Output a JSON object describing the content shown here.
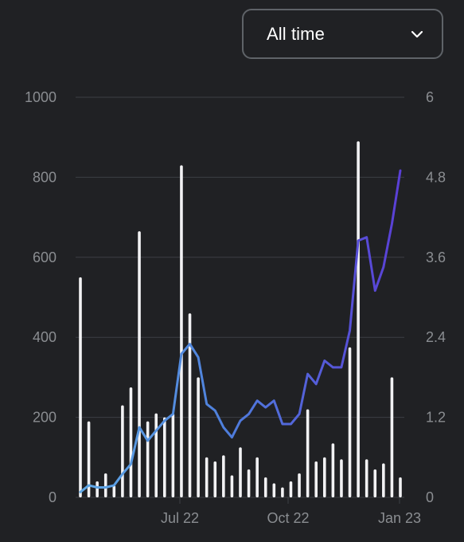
{
  "range_select": {
    "value": "All time",
    "icon": "chevron-down-icon"
  },
  "colors": {
    "background": "#202124",
    "bars": "#f2f2f4",
    "line_start": "#5fa8e6",
    "line_end": "#5a3fd6",
    "grid": "#3c3f44",
    "tick_text": "#8a8d91"
  },
  "chart_data": {
    "type": "bar+line",
    "title": "",
    "xlabel": "",
    "ylabel_left": "",
    "ylabel_right": "",
    "grid": true,
    "legend": "none",
    "x_ticks": [
      "Jul 22",
      "Oct 22",
      "Jan 23"
    ],
    "y_left": {
      "ticks": [
        "1000",
        "800",
        "600",
        "400",
        "200",
        "0"
      ],
      "range": [
        0,
        1000
      ]
    },
    "y_right": {
      "ticks": [
        "6",
        "4.8",
        "3.6",
        "2.4",
        "1.2",
        "0"
      ],
      "range": [
        0,
        6
      ]
    },
    "bars": [
      550,
      190,
      40,
      60,
      30,
      230,
      275,
      665,
      190,
      210,
      200,
      210,
      830,
      460,
      300,
      100,
      90,
      105,
      55,
      125,
      70,
      100,
      50,
      35,
      25,
      40,
      60,
      220,
      90,
      100,
      135,
      95,
      375,
      890,
      95,
      70,
      85,
      300,
      50
    ],
    "line": [
      0.08,
      0.18,
      0.15,
      0.15,
      0.18,
      0.35,
      0.5,
      1.05,
      0.85,
      1.0,
      1.15,
      1.25,
      2.15,
      2.3,
      2.1,
      1.4,
      1.3,
      1.05,
      0.9,
      1.15,
      1.25,
      1.45,
      1.35,
      1.45,
      1.1,
      1.1,
      1.25,
      1.85,
      1.7,
      2.05,
      1.95,
      1.95,
      2.5,
      3.85,
      3.9,
      3.1,
      3.45,
      4.1,
      4.9
    ]
  }
}
